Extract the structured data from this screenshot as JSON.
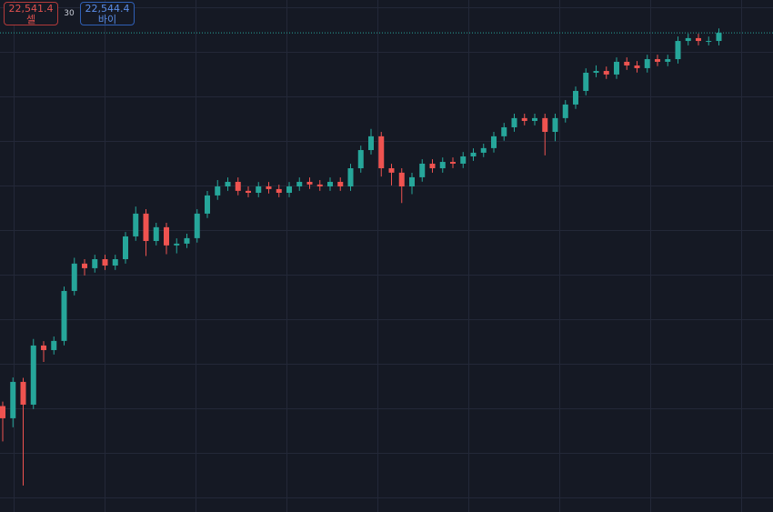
{
  "chart_data": {
    "type": "candlestick",
    "ylim": [
      22270,
      22560
    ],
    "grid": true,
    "up_color": "#26a69a",
    "down_color": "#ef5350",
    "open": [
      22330.0,
      22323.1,
      22343.7,
      22330.8,
      22364.3,
      22361.7,
      22366.9,
      22395.2,
      22410.7,
      22408.1,
      22413.2,
      22409.6,
      22413.2,
      22426.1,
      22439.0,
      22423.5,
      22431.3,
      22421.0,
      22422.0,
      22425.1,
      22439.0,
      22449.3,
      22454.4,
      22457.0,
      22451.9,
      22450.8,
      22454.4,
      22452.9,
      22450.8,
      22454.4,
      22457.0,
      22455.5,
      22454.4,
      22457.0,
      22454.4,
      22464.7,
      22475.0,
      22482.8,
      22464.7,
      22462.2,
      22454.4,
      22459.6,
      22467.3,
      22464.7,
      22468.3,
      22467.3,
      22471.4,
      22473.5,
      22476.1,
      22482.8,
      22487.9,
      22493.1,
      22491.5,
      22493.1,
      22485.3,
      22493.1,
      22500.8,
      22508.5,
      22518.8,
      22519.8,
      22517.8,
      22525.0,
      22522.9,
      22521.4,
      22526.5,
      22525.0,
      22526.5,
      22536.8,
      22538.4,
      22536.8,
      22536.8
    ],
    "high": [
      22332.5,
      22346.2,
      22346.0,
      22368.0,
      22366.8,
      22369.4,
      22397.7,
      22414.0,
      22413.2,
      22415.7,
      22415.7,
      22415.7,
      22428.6,
      22443.0,
      22441.5,
      22433.8,
      22433.8,
      22425.0,
      22427.6,
      22441.5,
      22451.8,
      22458.0,
      22459.5,
      22459.5,
      22454.4,
      22456.9,
      22456.9,
      22455.4,
      22456.9,
      22459.5,
      22459.5,
      22458.0,
      22459.5,
      22459.5,
      22467.2,
      22477.5,
      22487.0,
      22485.3,
      22467.2,
      22464.7,
      22462.1,
      22469.8,
      22469.8,
      22470.8,
      22470.8,
      22473.9,
      22476.0,
      22478.6,
      22485.3,
      22490.4,
      22495.6,
      22495.6,
      22495.6,
      22495.6,
      22495.6,
      22503.3,
      22511.0,
      22521.3,
      22523.0,
      22522.3,
      22527.5,
      22527.5,
      22525.4,
      22529.0,
      22529.0,
      22529.0,
      22539.3,
      22540.9,
      22540.9,
      22539.3,
      22543.9
    ],
    "low": [
      22310.0,
      22318.0,
      22285.0,
      22328.3,
      22355.0,
      22359.2,
      22364.4,
      22392.7,
      22404.0,
      22405.6,
      22407.1,
      22407.1,
      22410.7,
      22423.6,
      22415.0,
      22421.0,
      22416.0,
      22416.5,
      22419.5,
      22422.6,
      22436.5,
      22446.8,
      22451.9,
      22449.4,
      22448.3,
      22448.3,
      22450.4,
      22448.3,
      22448.3,
      22451.9,
      22453.0,
      22451.9,
      22451.9,
      22451.9,
      22451.9,
      22462.2,
      22472.5,
      22460.0,
      22455.0,
      22445.0,
      22450.0,
      22457.1,
      22462.2,
      22462.2,
      22464.8,
      22464.8,
      22468.9,
      22471.0,
      22473.6,
      22480.3,
      22485.4,
      22489.0,
      22489.0,
      22472.0,
      22480.0,
      22490.6,
      22498.3,
      22506.0,
      22516.3,
      22515.3,
      22515.3,
      22520.4,
      22518.9,
      22518.9,
      22522.5,
      22522.5,
      22524.0,
      22534.3,
      22534.3,
      22534.3,
      22534.3
    ],
    "close": [
      22323.1,
      22343.7,
      22330.8,
      22364.3,
      22361.7,
      22366.9,
      22395.2,
      22410.7,
      22408.1,
      22413.2,
      22409.6,
      22413.2,
      22426.1,
      22439.0,
      22423.5,
      22431.3,
      22421.0,
      22422.0,
      22425.1,
      22439.0,
      22449.3,
      22454.4,
      22457.0,
      22451.9,
      22450.8,
      22454.4,
      22452.9,
      22450.8,
      22454.4,
      22457.0,
      22455.5,
      22454.4,
      22457.0,
      22454.4,
      22464.7,
      22475.0,
      22482.8,
      22464.7,
      22462.2,
      22454.4,
      22459.6,
      22467.3,
      22464.7,
      22468.3,
      22467.3,
      22471.4,
      22473.5,
      22476.1,
      22482.8,
      22487.9,
      22493.1,
      22491.5,
      22493.1,
      22485.3,
      22493.1,
      22500.8,
      22508.5,
      22518.8,
      22519.8,
      22517.8,
      22525.0,
      22522.9,
      22521.4,
      22526.5,
      22525.0,
      22526.5,
      22536.8,
      22538.4,
      22536.8,
      22536.8,
      22541.4
    ]
  },
  "trade_panel": {
    "sell": {
      "value": 22541.4,
      "label": "22,541.4"
    },
    "sell_label": "셀",
    "spread": 30,
    "buy": {
      "value": 22544.4,
      "label": "22,544.4"
    },
    "buy_label": "바이"
  }
}
